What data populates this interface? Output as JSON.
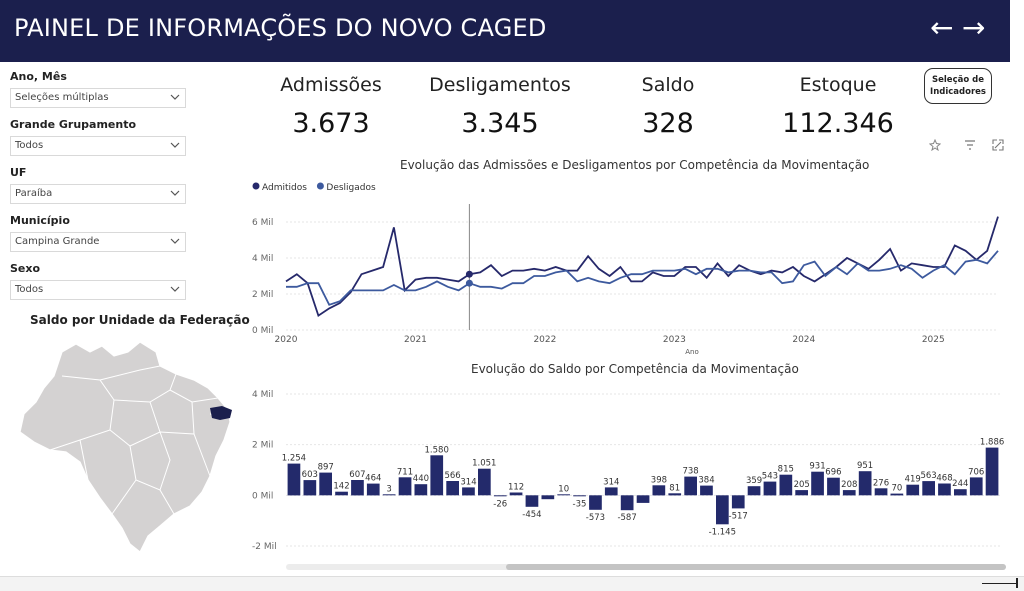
{
  "header": {
    "title": "PAINEL DE INFORMAÇÕES DO NOVO CAGED",
    "back_icon": "←",
    "forward_icon": "→"
  },
  "filters": [
    {
      "label": "Ano, Mês",
      "value": "Seleções múltiplas"
    },
    {
      "label": "Grande Grupamento",
      "value": "Todos"
    },
    {
      "label": "UF",
      "value": "Paraíba"
    },
    {
      "label": "Município",
      "value": "Campina Grande"
    },
    {
      "label": "Sexo",
      "value": "Todos"
    }
  ],
  "map": {
    "title": "Saldo por Unidade da Federação",
    "land_color": "#d4d2d2",
    "highlight_color": "#1b1f4d"
  },
  "kpis": [
    {
      "label": "Admissões",
      "value": "3.673"
    },
    {
      "label": "Desligamentos",
      "value": "3.345"
    },
    {
      "label": "Saldo",
      "value": "328"
    },
    {
      "label": "Estoque",
      "value": "112.346"
    }
  ],
  "selection_button": {
    "line1": "Seleção de",
    "line2": "Indicadores"
  },
  "toolbar_icons": [
    "pin-icon",
    "filter-icon",
    "focus-mode-icon"
  ],
  "chart_data": [
    {
      "type": "line",
      "title": "Evolução das Admissões e Desligamentos por Competência da Movimentação",
      "xlabel": "Ano",
      "ylabel": "",
      "x_ticks": [
        "2020",
        "2021",
        "2022",
        "2023",
        "2024",
        "2025"
      ],
      "y_ticks": [
        "0 Mil",
        "2 Mil",
        "4 Mil",
        "6 Mil"
      ],
      "ylim": [
        0,
        7000
      ],
      "legend_position": "top-left",
      "series": [
        {
          "name": "Admitidos",
          "color": "#26296b",
          "values": [
            2700,
            3100,
            2600,
            800,
            1200,
            1500,
            2100,
            3100,
            3300,
            3500,
            5700,
            2200,
            2800,
            2900,
            2900,
            2800,
            2700,
            3100,
            3200,
            3600,
            3000,
            3300,
            3300,
            3400,
            3300,
            3500,
            3300,
            3300,
            4100,
            3400,
            3000,
            3500,
            2700,
            2700,
            3200,
            3000,
            3000,
            3500,
            3500,
            2900,
            3700,
            3000,
            3600,
            3300,
            3100,
            3300,
            3200,
            3500,
            3000,
            2700,
            3100,
            3500,
            4000,
            3700,
            3400,
            3900,
            4500,
            3300,
            3700,
            3600,
            3500,
            3500,
            4700,
            4400,
            3900,
            4400,
            6300
          ]
        },
        {
          "name": "Desligados",
          "color": "#3d5a9e",
          "values": [
            2400,
            2400,
            2600,
            2600,
            1400,
            1600,
            2200,
            2200,
            2200,
            2200,
            2500,
            2200,
            2200,
            2400,
            2700,
            2400,
            2200,
            2600,
            2400,
            2400,
            2300,
            2600,
            2600,
            3000,
            3000,
            3200,
            3300,
            2700,
            2900,
            2700,
            2600,
            2900,
            3100,
            3100,
            3300,
            3300,
            3300,
            3400,
            3100,
            3400,
            3400,
            3200,
            3300,
            3300,
            3200,
            3200,
            2600,
            2700,
            3600,
            3800,
            3000,
            3500,
            3100,
            3700,
            3300,
            3300,
            3400,
            3600,
            3400,
            2900,
            3300,
            3600,
            3100,
            3800,
            3900,
            3700,
            4400
          ]
        }
      ],
      "cursor_index": 17
    },
    {
      "type": "bar",
      "title": "Evolução do Saldo por Competência da Movimentação",
      "xlabel": "",
      "ylabel": "",
      "y_ticks": [
        "-2 Mil",
        "0 Mil",
        "2 Mil",
        "4 Mil"
      ],
      "ylim": [
        -2000,
        4000
      ],
      "bar_color": "#232a6b",
      "values": [
        1254,
        603,
        897,
        142,
        607,
        464,
        3,
        711,
        440,
        1580,
        566,
        314,
        1051,
        -26,
        112,
        -454,
        -152,
        10,
        -35,
        -573,
        314,
        -587,
        -300,
        398,
        81,
        738,
        384,
        -1145,
        -517,
        359,
        543,
        815,
        205,
        931,
        696,
        208,
        951,
        276,
        70,
        419,
        563,
        468,
        244,
        706,
        1886
      ],
      "labels": [
        "1.254",
        "603",
        "897",
        "142",
        "607",
        "464",
        "3",
        "711",
        "440",
        "1.580",
        "566",
        "314",
        "1.051",
        "-26",
        "112",
        "-454",
        "",
        "10",
        "-35",
        "-573",
        "314",
        "-587",
        "",
        "398",
        "81",
        "738",
        "384",
        "-1.145",
        "-517",
        "359",
        "543",
        "815",
        "205",
        "931",
        "696",
        "208",
        "951",
        "276",
        "70",
        "419",
        "563",
        "468",
        "244",
        "706",
        "1.886"
      ]
    }
  ]
}
